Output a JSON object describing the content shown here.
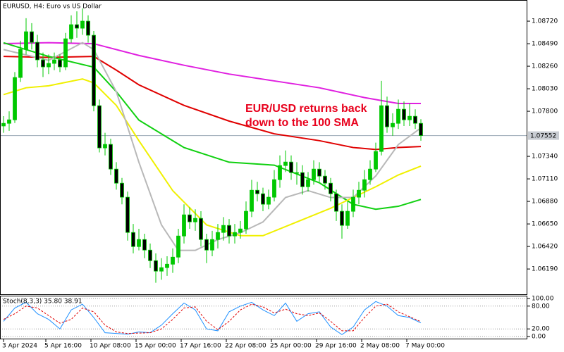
{
  "chart_data": {
    "type": "candlestick",
    "title": "EURUSD, H4:  Euro vs US Dollar",
    "annotation": [
      "EUR/USD returns back",
      "down to the 100 SMA"
    ],
    "up_color": "#00c800",
    "down_color": "#000000",
    "candles": {
      "open": [
        1.0765,
        1.07677,
        1.07713,
        1.08145,
        1.08432,
        1.08612,
        1.08504,
        1.08325,
        1.08253,
        1.08289,
        1.08325,
        1.08253,
        1.0854,
        1.08684,
        1.08648,
        1.0872,
        1.08576,
        1.07857,
        1.07426,
        1.07462,
        1.0721,
        1.07066,
        1.06923,
        1.06563,
        1.06419,
        1.06491,
        1.06383,
        1.06275,
        1.06168,
        1.06204,
        1.06239,
        1.06311,
        1.06527,
        1.06743,
        1.06671,
        1.06707,
        1.06491,
        1.06383,
        1.06491,
        1.06563,
        1.06635,
        1.06527,
        1.06563,
        1.06599,
        1.06779,
        1.06994,
        1.06958,
        1.06851,
        1.06923,
        1.07102,
        1.07246,
        1.07282,
        1.07174,
        1.07174,
        1.0703,
        1.07102,
        1.0721,
        1.07138,
        1.07066,
        1.06958,
        1.06779,
        1.06635,
        1.06779,
        1.06923,
        1.06994,
        1.07102,
        1.0721,
        1.0739,
        1.07857,
        1.07641,
        1.07677,
        1.07821,
        1.07713,
        1.07749,
        1.07677
      ],
      "high": [
        1.0775,
        1.078,
        1.082,
        1.0852,
        1.0875,
        1.087,
        1.0858,
        1.084,
        1.0838,
        1.084,
        1.0838,
        1.086,
        1.0878,
        1.0882,
        1.0885,
        1.0878,
        1.0862,
        1.0792,
        1.0758,
        1.0752,
        1.0728,
        1.0712,
        1.0698,
        1.0665,
        1.066,
        1.0655,
        1.0645,
        1.0635,
        1.063,
        1.0632,
        1.064,
        1.066,
        1.0685,
        1.0682,
        1.068,
        1.0678,
        1.0655,
        1.0658,
        1.0665,
        1.0672,
        1.067,
        1.0665,
        1.0668,
        1.0688,
        1.071,
        1.0708,
        1.0702,
        1.07,
        1.072,
        1.0735,
        1.074,
        1.0735,
        1.0728,
        1.0725,
        1.0718,
        1.073,
        1.0728,
        1.072,
        1.0712,
        1.07,
        1.0685,
        1.0688,
        1.07,
        1.0708,
        1.072,
        1.073,
        1.0748,
        1.0811,
        1.0795,
        1.0778,
        1.0792,
        1.079,
        1.0788,
        1.0782,
        1.0772
      ],
      "low": [
        1.0758,
        1.076,
        1.0768,
        1.081,
        1.0838,
        1.0843,
        1.0825,
        1.0815,
        1.0818,
        1.0822,
        1.082,
        1.0822,
        1.085,
        1.0855,
        1.0858,
        1.085,
        1.078,
        1.0738,
        1.0735,
        1.0715,
        1.07,
        1.0685,
        1.0648,
        1.0635,
        1.0638,
        1.063,
        1.062,
        1.0605,
        1.0608,
        1.0612,
        1.0615,
        1.0625,
        1.0645,
        1.066,
        1.0658,
        1.0642,
        1.0625,
        1.0632,
        1.064,
        1.0648,
        1.0645,
        1.0645,
        1.065,
        1.0655,
        1.0672,
        1.0688,
        1.0678,
        1.068,
        1.0688,
        1.0702,
        1.0718,
        1.071,
        1.0705,
        1.0695,
        1.0698,
        1.0705,
        1.0708,
        1.07,
        1.0688,
        1.0668,
        1.065,
        1.066,
        1.0672,
        1.0685,
        1.0692,
        1.0705,
        1.0718,
        1.0735,
        1.0758,
        1.0755,
        1.0762,
        1.0765,
        1.0765,
        1.0762,
        1.075
      ],
      "close": [
        1.07677,
        1.07713,
        1.08145,
        1.08432,
        1.08612,
        1.08504,
        1.08325,
        1.08253,
        1.08289,
        1.08325,
        1.08253,
        1.0854,
        1.08684,
        1.08648,
        1.0872,
        1.08576,
        1.07857,
        1.07426,
        1.07462,
        1.0721,
        1.07066,
        1.06923,
        1.06563,
        1.06419,
        1.06491,
        1.06383,
        1.06275,
        1.06168,
        1.06204,
        1.06239,
        1.06311,
        1.06527,
        1.06743,
        1.06671,
        1.06707,
        1.06491,
        1.06383,
        1.06491,
        1.06563,
        1.06635,
        1.06527,
        1.06563,
        1.06599,
        1.06779,
        1.06994,
        1.06958,
        1.06851,
        1.06923,
        1.07102,
        1.07246,
        1.07282,
        1.07174,
        1.07174,
        1.0703,
        1.07102,
        1.0721,
        1.07138,
        1.07066,
        1.06958,
        1.06779,
        1.06635,
        1.06779,
        1.06923,
        1.06994,
        1.07102,
        1.0721,
        1.0739,
        1.07857,
        1.07641,
        1.07677,
        1.07821,
        1.07713,
        1.07749,
        1.07677,
        1.07552
      ]
    },
    "xlim": [
      -0.625,
      92.875
    ],
    "xticks": [
      {
        "value": 0,
        "label": "3 Apr 2024"
      },
      {
        "value": 7.5,
        "label": "5 Apr 16:00"
      },
      {
        "value": 15.5,
        "label": "10 Apr 08:00"
      },
      {
        "value": 23.5,
        "label": "15 Apr 00:00"
      },
      {
        "value": 31.5,
        "label": "17 Apr 16:00"
      },
      {
        "value": 39.5,
        "label": "22 Apr 08:00"
      },
      {
        "value": 47.5,
        "label": "25 Apr 00:00"
      },
      {
        "value": 55.5,
        "label": "29 Apr 16:00"
      },
      {
        "value": 63.5,
        "label": "2 May 08:00"
      },
      {
        "value": 71.5,
        "label": "7 May 00:00"
      }
    ],
    "ylim": [
      1.05932,
      1.08936
    ],
    "yticks": [
      {
        "value": 1.0872,
        "label": "1.08720"
      },
      {
        "value": 1.0849,
        "label": "1.08490"
      },
      {
        "value": 1.0826,
        "label": "1.08260"
      },
      {
        "value": 1.0803,
        "label": "1.08030"
      },
      {
        "value": 1.078,
        "label": "1.07800"
      },
      {
        "value": 1.0734,
        "label": "1.07340"
      },
      {
        "value": 1.0711,
        "label": "1.07110"
      },
      {
        "value": 1.0688,
        "label": "1.06880"
      },
      {
        "value": 1.0665,
        "label": "1.06650"
      },
      {
        "value": 1.0642,
        "label": "1.06420"
      },
      {
        "value": 1.0619,
        "label": "1.06190"
      }
    ],
    "current_price": 1.07552,
    "moving_averages": [
      {
        "color": "#e020e0",
        "x": [
          0,
          8,
          16,
          24,
          32,
          40,
          48,
          56,
          64,
          70,
          74
        ],
        "values": [
          1.0849,
          1.085,
          1.0849,
          1.0837,
          1.0827,
          1.0818,
          1.0811,
          1.0804,
          1.0794,
          1.0788,
          1.0788
        ]
      },
      {
        "color": "#e00000",
        "x": [
          0,
          8,
          16,
          20,
          24,
          32,
          40,
          48,
          56,
          62,
          66,
          70,
          74
        ],
        "values": [
          1.0836,
          1.0835,
          1.0836,
          1.0822,
          1.0807,
          1.0786,
          1.077,
          1.0757,
          1.075,
          1.0743,
          1.0741,
          1.0743,
          1.0744
        ]
      },
      {
        "color": "#10d010",
        "x": [
          0,
          8,
          16,
          20,
          24,
          32,
          40,
          48,
          56,
          62,
          66,
          70,
          74
        ],
        "values": [
          1.085,
          1.0836,
          1.0825,
          1.08,
          1.0771,
          1.0743,
          1.0728,
          1.0725,
          1.0707,
          1.0685,
          1.068,
          1.0683,
          1.069
        ]
      },
      {
        "color": "#f0f000",
        "x": [
          0,
          4,
          8,
          14,
          16,
          20,
          24,
          30,
          36,
          42,
          46,
          52,
          58,
          62,
          66,
          70,
          74
        ],
        "values": [
          1.0797,
          1.0804,
          1.0806,
          1.0813,
          1.0809,
          1.0786,
          1.075,
          1.0699,
          1.0664,
          1.0653,
          1.0653,
          1.0667,
          1.0681,
          1.0692,
          1.0703,
          1.0715,
          1.0724
        ]
      },
      {
        "color": "#b8b8b8",
        "x": [
          0,
          8,
          14,
          16,
          20,
          24,
          28,
          31,
          34,
          38,
          42,
          46,
          50,
          54,
          58,
          62,
          66,
          70,
          74
        ],
        "values": [
          1.0843,
          1.0832,
          1.085,
          1.0843,
          1.08,
          1.0728,
          1.0664,
          1.0638,
          1.0638,
          1.0649,
          1.0656,
          1.0667,
          1.0692,
          1.0699,
          1.0692,
          1.0692,
          1.0714,
          1.0746,
          1.0763
        ]
      }
    ],
    "indicator": {
      "title": "Stoch(8,3,3) 35.80 38.91",
      "ylim": [
        0,
        100
      ],
      "yticks": [
        {
          "value": 100,
          "label": "100.00"
        },
        {
          "value": 80,
          "label": "80.00"
        },
        {
          "value": 20,
          "label": "20.00"
        },
        {
          "value": 0,
          "label": "0.00"
        }
      ],
      "x": [
        0,
        2,
        4,
        6,
        8,
        10,
        12,
        14,
        16,
        18,
        20,
        22,
        24,
        26,
        28,
        30,
        32,
        34,
        36,
        38,
        40,
        42,
        44,
        46,
        48,
        50,
        52,
        54,
        56,
        58,
        60,
        62,
        64,
        66,
        68,
        70,
        72,
        74
      ],
      "series": [
        {
          "color": "#1e90ff",
          "values": [
            40,
            75,
            90,
            60,
            45,
            20,
            70,
            85,
            50,
            10,
            8,
            6,
            12,
            10,
            30,
            60,
            88,
            70,
            20,
            15,
            65,
            80,
            90,
            70,
            55,
            88,
            40,
            60,
            65,
            25,
            5,
            25,
            70,
            92,
            80,
            55,
            50,
            35.8
          ]
        },
        {
          "color": "#e00000",
          "dashed": true,
          "values": [
            45,
            60,
            80,
            75,
            55,
            35,
            45,
            75,
            65,
            30,
            12,
            8,
            9,
            10,
            20,
            45,
            75,
            78,
            40,
            18,
            40,
            70,
            85,
            78,
            62,
            72,
            60,
            55,
            62,
            40,
            15,
            15,
            50,
            80,
            85,
            65,
            52,
            38.91
          ]
        }
      ]
    }
  }
}
